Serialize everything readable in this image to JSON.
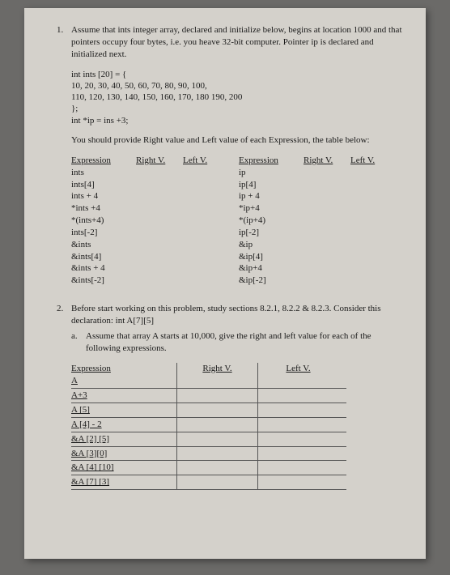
{
  "q1": {
    "num": "1.",
    "intro": "Assume that ints integer array, declared and initialize below, begins at location 1000 and that pointers occupy four bytes, i.e. you heave 32-bit computer. Pointer ip is declared and initialized next.",
    "code": [
      "int ints [20] = {",
      "10, 20, 30, 40, 50, 60, 70, 80, 90, 100,",
      "110, 120, 130, 140, 150, 160, 170, 180 190, 200",
      "};",
      "int *ip = ins +3;"
    ],
    "instruction": "You should provide Right value and Left value of each Expression, the table below:",
    "headers": {
      "expr": "Expression",
      "rv": "Right V.",
      "lv": "Left V."
    },
    "left_col": [
      "ints",
      "ints[4]",
      "ints + 4",
      "*ints +4",
      "*(ints+4)",
      "ints[-2]",
      "&ints",
      "&ints[4]",
      "&ints + 4",
      "&ints[-2]"
    ],
    "right_col": [
      "ip",
      "ip[4]",
      "ip + 4",
      "*ip+4",
      "*(ip+4)",
      "ip[-2]",
      "&ip",
      "&ip[4]",
      "&ip+4",
      "&ip[-2]"
    ]
  },
  "q2": {
    "num": "2.",
    "intro": "Before start working on this problem, study sections 8.2.1, 8.2.2 & 8.2.3. Consider  this declaration: int A[7][5]",
    "sub_a_letter": "a.",
    "sub_a": "Assume that array A starts at 10,000, give the right and left value for each of the following expressions.",
    "headers": {
      "expr": "Expression",
      "rv": "Right  V.",
      "lv": "Left  V."
    },
    "rows": [
      "A",
      "A+3",
      "A [5]",
      "A [4] - 2",
      "&A [2] [5]",
      "&A [3][0]",
      "&A [4] [10]",
      "&A [7] [3]"
    ]
  }
}
